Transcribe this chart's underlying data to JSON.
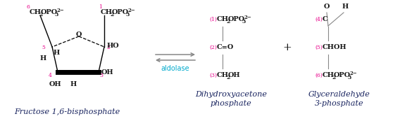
{
  "bg_color": "#ffffff",
  "pink": "#e8008a",
  "black": "#1a1a1a",
  "dark_navy": "#1a2560",
  "cyan": "#00aacc",
  "gray": "#888888",
  "fructose_label": "Fructose 1,6-bisphosphate",
  "aldolase_label": "aldolase",
  "dhap_name1": "Dihydroxyacetone",
  "dhap_name2": "phosphate",
  "g3p_name1": "Glyceraldehyde",
  "g3p_name2": "3-phosphate"
}
